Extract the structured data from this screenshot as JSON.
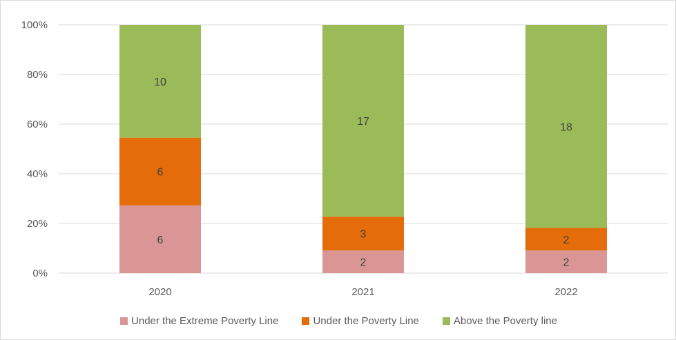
{
  "chart_data": {
    "type": "bar",
    "stacked": true,
    "normalized": true,
    "categories": [
      "2020",
      "2021",
      "2022"
    ],
    "series": [
      {
        "name": "Under the Extreme Poverty Line",
        "values": [
          6,
          2,
          2
        ],
        "color": "#DA9694"
      },
      {
        "name": "Under the Poverty Line",
        "values": [
          6,
          3,
          2
        ],
        "color": "#E46C0A"
      },
      {
        "name": "Above the Poverty line",
        "values": [
          10,
          17,
          18
        ],
        "color": "#9BBB59"
      }
    ],
    "y_ticks": [
      "0%",
      "20%",
      "40%",
      "60%",
      "80%",
      "100%"
    ],
    "ylim": [
      0,
      100
    ],
    "grid": true,
    "legend_position": "bottom"
  }
}
